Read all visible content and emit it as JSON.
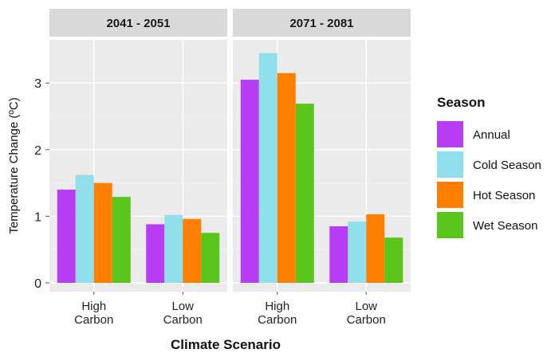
{
  "chart_data": {
    "type": "bar",
    "xlabel": "Climate Scenario",
    "ylabel": "Temperature Change (ºC)",
    "ylim": [
      0,
      3.5
    ],
    "yticks": [
      "0",
      "1",
      "2",
      "3"
    ],
    "grid": true,
    "legend_position": "right",
    "legend_title": "Season",
    "categories": [
      [
        "High",
        "Carbon"
      ],
      [
        "Low",
        "Carbon"
      ]
    ],
    "series": [
      {
        "name": "Annual",
        "color": "#b93df5"
      },
      {
        "name": "Cold Season",
        "color": "#8fe0ec"
      },
      {
        "name": "Hot Season",
        "color": "#ff7f00"
      },
      {
        "name": "Wet Season",
        "color": "#5ac51a"
      }
    ],
    "panels": [
      {
        "title": "2041 - 2051",
        "values": [
          [
            1.4,
            1.62,
            1.5,
            1.29
          ],
          [
            0.88,
            1.02,
            0.96,
            0.75
          ]
        ]
      },
      {
        "title": "2071 - 2081",
        "values": [
          [
            3.05,
            3.45,
            3.15,
            2.69
          ],
          [
            0.85,
            0.92,
            1.03,
            0.68
          ]
        ]
      }
    ]
  }
}
